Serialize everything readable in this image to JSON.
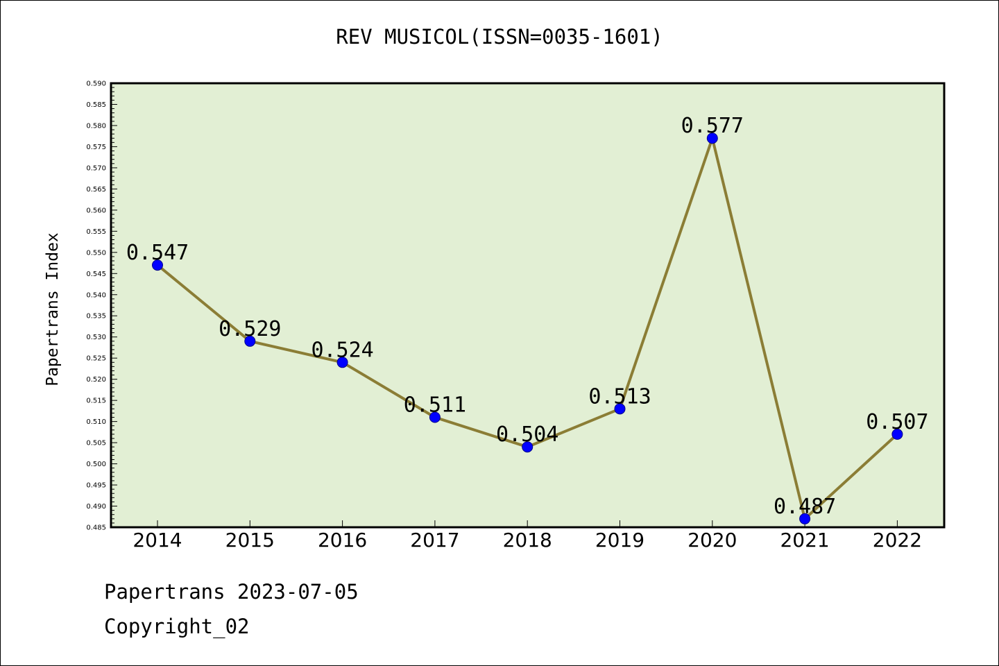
{
  "colors": {
    "plot_background": "#e2efd4",
    "line": "#8b7d35",
    "marker_fill": "#0000ff",
    "marker_stroke": "#00008b",
    "axis": "#000000"
  },
  "chart_data": {
    "type": "line",
    "title": "REV MUSICOL(ISSN=0035-1601)",
    "xlabel": "",
    "ylabel": "Papertrans Index",
    "categories": [
      "2014",
      "2015",
      "2016",
      "2017",
      "2018",
      "2019",
      "2020",
      "2021",
      "2022"
    ],
    "series": [
      {
        "values": [
          0.547,
          0.529,
          0.524,
          0.511,
          0.504,
          0.513,
          0.577,
          0.487,
          0.507
        ],
        "labels": [
          "0.547",
          "0.529",
          "0.524",
          "0.511",
          "0.504",
          "0.513",
          "0.577",
          "0.487",
          "0.507"
        ]
      }
    ],
    "ylim": [
      0.485,
      0.59
    ],
    "yticks": [
      "0.485",
      "0.490",
      "0.495",
      "0.500",
      "0.505",
      "0.510",
      "0.515",
      "0.520",
      "0.525",
      "0.530",
      "0.535",
      "0.540",
      "0.545",
      "0.550",
      "0.555",
      "0.560",
      "0.565",
      "0.570",
      "0.575",
      "0.580",
      "0.585",
      "0.590"
    ],
    "grid": false,
    "legend": "none"
  },
  "footer": {
    "line1": "Papertrans 2023-07-05",
    "line2": "Copyright_02"
  }
}
